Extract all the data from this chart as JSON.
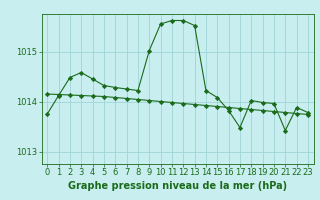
{
  "title": "Graphe pression niveau de la mer (hPa)",
  "background_color": "#c8eef0",
  "grid_color": "#9fd4d8",
  "line_color": "#1a6b1a",
  "marker_color": "#1a6b1a",
  "xlim": [
    -0.5,
    23.5
  ],
  "ylim": [
    1012.75,
    1015.75
  ],
  "yticks": [
    1013,
    1014,
    1015
  ],
  "xticks": [
    0,
    1,
    2,
    3,
    4,
    5,
    6,
    7,
    8,
    9,
    10,
    11,
    12,
    13,
    14,
    15,
    16,
    17,
    18,
    19,
    20,
    21,
    22,
    23
  ],
  "series1_x": [
    0,
    1,
    2,
    3,
    4,
    5,
    6,
    7,
    8,
    9,
    10,
    11,
    12,
    13,
    14,
    15,
    16,
    17,
    18,
    19,
    20,
    21,
    22,
    23
  ],
  "series1_y": [
    1013.75,
    1014.12,
    1014.48,
    1014.58,
    1014.45,
    1014.32,
    1014.28,
    1014.25,
    1014.22,
    1015.02,
    1015.55,
    1015.62,
    1015.62,
    1015.52,
    1014.22,
    1014.08,
    1013.82,
    1013.48,
    1014.02,
    1013.98,
    1013.96,
    1013.42,
    1013.88,
    1013.78
  ],
  "series2_x": [
    0,
    1,
    2,
    3,
    4,
    5,
    6,
    7,
    8,
    9,
    10,
    11,
    12,
    13,
    14,
    15,
    16,
    17,
    18,
    19,
    20,
    21,
    22,
    23
  ],
  "series2_y": [
    1014.15,
    1014.14,
    1014.13,
    1014.12,
    1014.11,
    1014.1,
    1014.08,
    1014.06,
    1014.04,
    1014.02,
    1014.0,
    1013.98,
    1013.96,
    1013.94,
    1013.92,
    1013.9,
    1013.88,
    1013.86,
    1013.84,
    1013.82,
    1013.8,
    1013.78,
    1013.76,
    1013.74
  ],
  "tick_fontsize": 6.0,
  "title_fontsize": 7.0
}
